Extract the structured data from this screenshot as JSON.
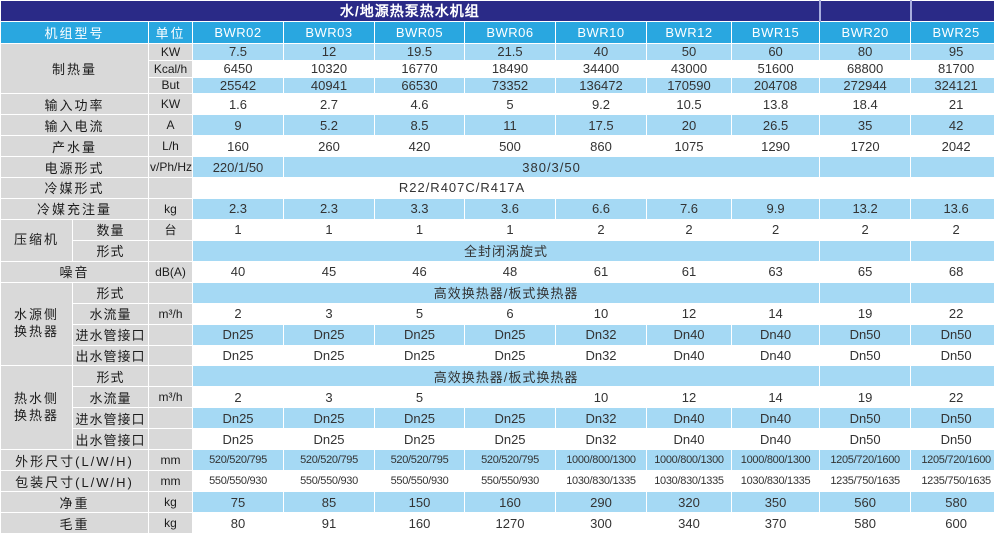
{
  "title": "水/地源热泵热水机组",
  "colors": {
    "title_bar": "#2a2a87",
    "header_blue": "#29a7e0",
    "row_light_blue": "#a5d9f4",
    "label_gray": "#d9d9d9",
    "text_dark": "#333333",
    "header_text": "#ffffff"
  },
  "header": {
    "model_label": "机组型号",
    "unit_label": "单位",
    "models": [
      "BWR02",
      "BWR03",
      "BWR05",
      "BWR06",
      "BWR10",
      "BWR12",
      "BWR15",
      "BWR20",
      "BWR25"
    ]
  },
  "rows": [
    {
      "label": {
        "text": "制热量",
        "rowspan": 3,
        "colspan": 2
      },
      "unit": "KW",
      "shade": "blue",
      "cells": [
        "7.5",
        "12",
        "19.5",
        "21.5",
        "40",
        "50",
        "60",
        "80",
        "95"
      ]
    },
    {
      "unit": "Kcal/h",
      "shade": "white",
      "cells": [
        "6450",
        "10320",
        "16770",
        "18490",
        "34400",
        "43000",
        "51600",
        "68800",
        "81700"
      ]
    },
    {
      "unit": "But",
      "shade": "blue",
      "cells": [
        "25542",
        "40941",
        "66530",
        "73352",
        "136472",
        "170590",
        "204708",
        "272944",
        "324121"
      ]
    },
    {
      "label": {
        "text": "输入功率",
        "colspan": 2
      },
      "unit": "KW",
      "shade": "white",
      "cells": [
        "1.6",
        "2.7",
        "4.6",
        "5",
        "9.2",
        "10.5",
        "13.8",
        "18.4",
        "21"
      ]
    },
    {
      "label": {
        "text": "输入电流",
        "colspan": 2
      },
      "unit": "A",
      "shade": "blue",
      "cells": [
        "9",
        "5.2",
        "8.5",
        "11",
        "17.5",
        "20",
        "26.5",
        "35",
        "42"
      ]
    },
    {
      "label": {
        "text": "产水量",
        "colspan": 2
      },
      "unit": "L/h",
      "shade": "white",
      "cells": [
        "160",
        "260",
        "420",
        "500",
        "860",
        "1075",
        "1290",
        "1720",
        "2042"
      ]
    },
    {
      "label": {
        "text": "电源形式",
        "colspan": 2
      },
      "unit": "v/Ph/Hz",
      "shade": "blue",
      "cells": [
        {
          "text": "220/1/50",
          "span": 1
        },
        {
          "text": "380/3/50",
          "span": 6
        },
        {
          "text": "",
          "span": 1
        },
        {
          "text": "",
          "span": 1
        }
      ]
    },
    {
      "label": {
        "text": "冷媒形式",
        "colspan": 2
      },
      "unit": "",
      "shade": "white",
      "cells": [
        {
          "text": "R22/R407C/R417A",
          "span": 6
        },
        {
          "text": "",
          "span": 1
        },
        {
          "text": "",
          "span": 1
        },
        {
          "text": "",
          "span": 1
        }
      ]
    },
    {
      "label": {
        "text": "冷媒充注量",
        "colspan": 2
      },
      "unit": "kg",
      "shade": "blue",
      "cells": [
        "2.3",
        "2.3",
        "3.3",
        "3.6",
        "6.6",
        "7.6",
        "9.9",
        "13.2",
        "13.6"
      ]
    },
    {
      "group": {
        "text": "压缩机",
        "rowspan": 2
      },
      "label": {
        "text": "数量"
      },
      "unit": "台",
      "shade": "white",
      "cells": [
        "1",
        "1",
        "1",
        "1",
        "2",
        "2",
        "2",
        "2",
        "2"
      ]
    },
    {
      "label": {
        "text": "形式"
      },
      "unit": "",
      "shade": "blue",
      "cells": [
        {
          "text": "全封闭涡旋式",
          "span": 7
        },
        {
          "text": "",
          "span": 1
        },
        {
          "text": "",
          "span": 1
        }
      ]
    },
    {
      "label": {
        "text": "噪音",
        "colspan": 2
      },
      "unit": "dB(A)",
      "shade": "white",
      "cells": [
        "40",
        "45",
        "46",
        "48",
        "61",
        "61",
        "63",
        "65",
        "68"
      ]
    },
    {
      "group": {
        "text": "水源侧\n换热器",
        "rowspan": 4
      },
      "label": {
        "text": "形式"
      },
      "unit": "",
      "shade": "blue",
      "cells": [
        {
          "text": "高效换热器/板式换热器",
          "span": 7
        },
        {
          "text": "",
          "span": 1
        },
        {
          "text": "",
          "span": 1
        }
      ]
    },
    {
      "label": {
        "text": "水流量"
      },
      "unit": "m³/h",
      "shade": "white",
      "cells": [
        "2",
        "3",
        "5",
        "6",
        "10",
        "12",
        "14",
        "19",
        "22"
      ]
    },
    {
      "label": {
        "text": "进水管接口"
      },
      "unit": "",
      "shade": "blue",
      "cells": [
        "Dn25",
        "Dn25",
        "Dn25",
        "Dn25",
        "Dn32",
        "Dn40",
        "Dn40",
        "Dn50",
        "Dn50"
      ]
    },
    {
      "label": {
        "text": "出水管接口"
      },
      "unit": "",
      "shade": "white",
      "cells": [
        "Dn25",
        "Dn25",
        "Dn25",
        "Dn25",
        "Dn32",
        "Dn40",
        "Dn40",
        "Dn50",
        "Dn50"
      ]
    },
    {
      "group": {
        "text": "热水侧\n换热器",
        "rowspan": 4
      },
      "label": {
        "text": "形式"
      },
      "unit": "",
      "shade": "blue",
      "cells": [
        {
          "text": "高效换热器/板式换热器",
          "span": 7
        },
        {
          "text": "",
          "span": 1
        },
        {
          "text": "",
          "span": 1
        }
      ]
    },
    {
      "label": {
        "text": "水流量"
      },
      "unit": "m³/h",
      "shade": "white",
      "cells": [
        "2",
        "3",
        "5",
        "",
        "10",
        "12",
        "14",
        "19",
        "22"
      ]
    },
    {
      "label": {
        "text": "进水管接口"
      },
      "unit": "",
      "shade": "blue",
      "cells": [
        "Dn25",
        "Dn25",
        "Dn25",
        "Dn25",
        "Dn32",
        "Dn40",
        "Dn40",
        "Dn50",
        "Dn50"
      ]
    },
    {
      "label": {
        "text": "出水管接口"
      },
      "unit": "",
      "shade": "white",
      "cells": [
        "Dn25",
        "Dn25",
        "Dn25",
        "Dn25",
        "Dn32",
        "Dn40",
        "Dn40",
        "Dn50",
        "Dn50"
      ]
    },
    {
      "label": {
        "text": "外形尺寸(L/W/H)",
        "colspan": 2
      },
      "unit": "mm",
      "shade": "blue",
      "dense": true,
      "cells": [
        "520/520/795",
        "520/520/795",
        "520/520/795",
        "520/520/795",
        "1000/800/1300",
        "1000/800/1300",
        "1000/800/1300",
        "1205/720/1600",
        "1205/720/1600"
      ]
    },
    {
      "label": {
        "text": "包装尺寸(L/W/H)",
        "colspan": 2
      },
      "unit": "mm",
      "shade": "white",
      "dense": true,
      "cells": [
        "550/550/930",
        "550/550/930",
        "550/550/930",
        "550/550/930",
        "1030/830/1335",
        "1030/830/1335",
        "1030/830/1335",
        "1235/750/1635",
        "1235/750/1635"
      ]
    },
    {
      "label": {
        "text": "净重",
        "colspan": 2
      },
      "unit": "kg",
      "shade": "blue",
      "cells": [
        "75",
        "85",
        "150",
        "160",
        "290",
        "320",
        "350",
        "560",
        "580"
      ]
    },
    {
      "label": {
        "text": "毛重",
        "colspan": 2
      },
      "unit": "kg",
      "shade": "white",
      "cells": [
        "80",
        "91",
        "160",
        "1270",
        "300",
        "340",
        "370",
        "580",
        "600"
      ]
    }
  ]
}
